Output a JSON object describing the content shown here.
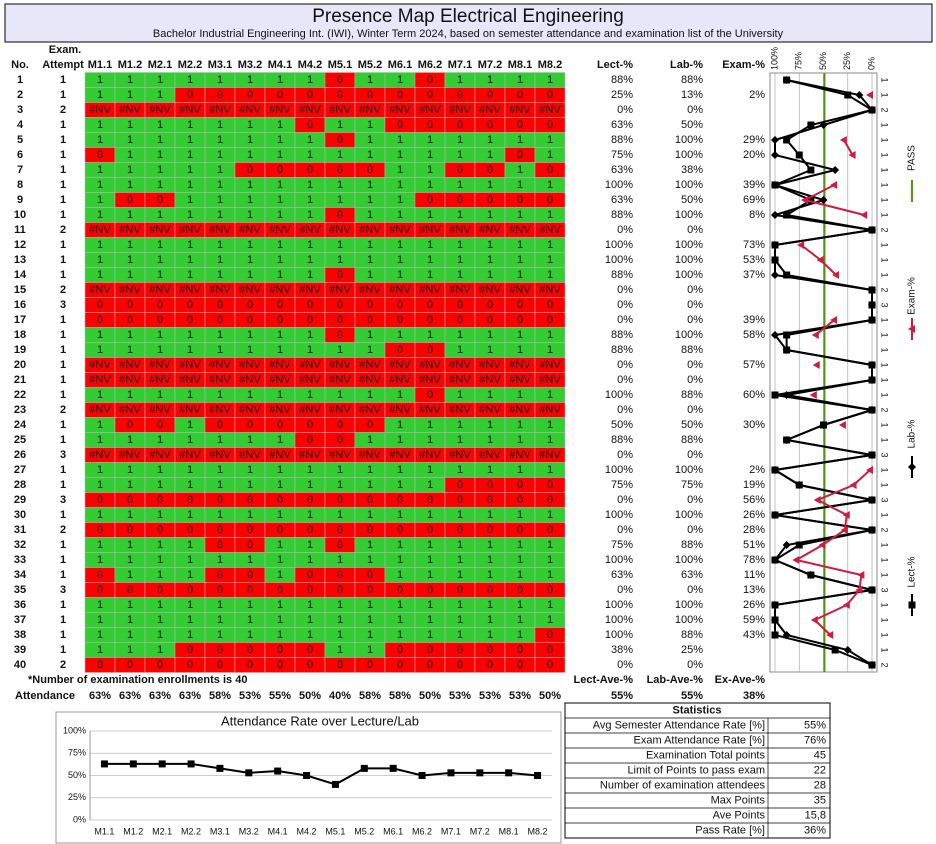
{
  "header": {
    "title": "Presence Map Electrical Engineering",
    "subtitle": "Bachelor Industrial Engineering Int. (IWI), Winter Term 2024, based on semester attendance and examination list of the University"
  },
  "table": {
    "exam_label": "Exam.",
    "columns": [
      "No.",
      "Attempt",
      "M1.1",
      "M1.2",
      "M2.1",
      "M2.2",
      "M3.1",
      "M3.2",
      "M4.1",
      "M4.2",
      "M5.1",
      "M5.2",
      "M6.1",
      "M6.2",
      "M7.1",
      "M7.2",
      "M8.1",
      "M8.2",
      "Lect-%",
      "Lab-%",
      "Exam-%"
    ],
    "rows": [
      [
        1,
        1,
        1,
        1,
        1,
        1,
        1,
        1,
        1,
        1,
        0,
        1,
        1,
        0,
        1,
        1,
        1,
        1,
        "88%",
        "88%",
        null
      ],
      [
        2,
        1,
        1,
        1,
        1,
        0,
        0,
        0,
        0,
        0,
        0,
        0,
        0,
        0,
        0,
        0,
        0,
        0,
        "25%",
        "13%",
        "2%"
      ],
      [
        3,
        2,
        "#NV",
        "#NV",
        "#NV",
        "#NV",
        "#NV",
        "#NV",
        "#NV",
        "#NV",
        "#NV",
        "#NV",
        "#NV",
        "#NV",
        "#NV",
        "#NV",
        "#NV",
        "#NV",
        "0%",
        "0%",
        null
      ],
      [
        4,
        1,
        1,
        1,
        1,
        1,
        1,
        1,
        1,
        0,
        1,
        1,
        0,
        0,
        0,
        0,
        0,
        0,
        "63%",
        "50%",
        null
      ],
      [
        5,
        1,
        1,
        1,
        1,
        1,
        1,
        1,
        1,
        1,
        0,
        1,
        1,
        1,
        1,
        1,
        1,
        1,
        "88%",
        "100%",
        "29%"
      ],
      [
        6,
        1,
        0,
        1,
        1,
        1,
        1,
        1,
        1,
        1,
        1,
        1,
        1,
        1,
        1,
        1,
        0,
        1,
        "75%",
        "100%",
        "20%"
      ],
      [
        7,
        1,
        1,
        1,
        1,
        1,
        1,
        0,
        0,
        0,
        0,
        0,
        1,
        1,
        0,
        0,
        1,
        0,
        "63%",
        "38%",
        null
      ],
      [
        8,
        1,
        1,
        1,
        1,
        1,
        1,
        1,
        1,
        1,
        1,
        1,
        1,
        1,
        1,
        1,
        1,
        1,
        "100%",
        "100%",
        "39%"
      ],
      [
        9,
        1,
        1,
        0,
        0,
        1,
        1,
        1,
        1,
        1,
        1,
        1,
        1,
        0,
        0,
        0,
        0,
        0,
        "63%",
        "50%",
        "69%"
      ],
      [
        10,
        1,
        1,
        1,
        1,
        1,
        1,
        1,
        1,
        1,
        0,
        1,
        1,
        1,
        1,
        1,
        1,
        1,
        "88%",
        "100%",
        "8%"
      ],
      [
        11,
        2,
        "#NV",
        "#NV",
        "#NV",
        "#NV",
        "#NV",
        "#NV",
        "#NV",
        "#NV",
        "#NV",
        "#NV",
        "#NV",
        "#NV",
        "#NV",
        "#NV",
        "#NV",
        "#NV",
        "0%",
        "0%",
        null
      ],
      [
        12,
        1,
        1,
        1,
        1,
        1,
        1,
        1,
        1,
        1,
        1,
        1,
        1,
        1,
        1,
        1,
        1,
        1,
        "100%",
        "100%",
        "73%"
      ],
      [
        13,
        1,
        1,
        1,
        1,
        1,
        1,
        1,
        1,
        1,
        1,
        1,
        1,
        1,
        1,
        1,
        1,
        1,
        "100%",
        "100%",
        "53%"
      ],
      [
        14,
        1,
        1,
        1,
        1,
        1,
        1,
        1,
        1,
        1,
        0,
        1,
        1,
        1,
        1,
        1,
        1,
        1,
        "88%",
        "100%",
        "37%"
      ],
      [
        15,
        2,
        "#NV",
        "#NV",
        "#NV",
        "#NV",
        "#NV",
        "#NV",
        "#NV",
        "#NV",
        "#NV",
        "#NV",
        "#NV",
        "#NV",
        "#NV",
        "#NV",
        "#NV",
        "#NV",
        "0%",
        "0%",
        null
      ],
      [
        16,
        3,
        0,
        0,
        0,
        0,
        0,
        0,
        0,
        0,
        0,
        0,
        0,
        0,
        0,
        0,
        0,
        0,
        "0%",
        "0%",
        null
      ],
      [
        17,
        1,
        0,
        0,
        0,
        0,
        0,
        0,
        0,
        0,
        0,
        0,
        0,
        0,
        0,
        0,
        0,
        0,
        "0%",
        "0%",
        "39%"
      ],
      [
        18,
        1,
        1,
        1,
        1,
        1,
        1,
        1,
        1,
        1,
        0,
        1,
        1,
        1,
        1,
        1,
        1,
        1,
        "88%",
        "100%",
        "58%"
      ],
      [
        19,
        1,
        1,
        1,
        1,
        1,
        1,
        1,
        1,
        1,
        1,
        1,
        0,
        0,
        1,
        1,
        1,
        1,
        "88%",
        "88%",
        null
      ],
      [
        20,
        1,
        "#NV",
        "#NV",
        "#NV",
        "#NV",
        "#NV",
        "#NV",
        "#NV",
        "#NV",
        "#NV",
        "#NV",
        "#NV",
        "#NV",
        "#NV",
        "#NV",
        "#NV",
        "#NV",
        "0%",
        "0%",
        "57%"
      ],
      [
        21,
        1,
        "#NV",
        "#NV",
        "#NV",
        "#NV",
        "#NV",
        "#NV",
        "#NV",
        "#NV",
        "#NV",
        "#NV",
        "#NV",
        "#NV",
        "#NV",
        "#NV",
        "#NV",
        "#NV",
        "0%",
        "0%",
        null
      ],
      [
        22,
        1,
        1,
        1,
        1,
        1,
        1,
        1,
        1,
        1,
        1,
        1,
        1,
        0,
        1,
        1,
        1,
        1,
        "100%",
        "88%",
        "60%"
      ],
      [
        23,
        2,
        "#NV",
        "#NV",
        "#NV",
        "#NV",
        "#NV",
        "#NV",
        "#NV",
        "#NV",
        "#NV",
        "#NV",
        "#NV",
        "#NV",
        "#NV",
        "#NV",
        "#NV",
        "#NV",
        "0%",
        "0%",
        null
      ],
      [
        24,
        1,
        1,
        0,
        0,
        1,
        0,
        0,
        0,
        0,
        0,
        0,
        1,
        1,
        1,
        1,
        1,
        1,
        "50%",
        "50%",
        "30%"
      ],
      [
        25,
        1,
        1,
        1,
        1,
        1,
        1,
        1,
        1,
        0,
        0,
        1,
        1,
        1,
        1,
        1,
        1,
        1,
        "88%",
        "88%",
        null
      ],
      [
        26,
        3,
        "#NV",
        "#NV",
        "#NV",
        "#NV",
        "#NV",
        "#NV",
        "#NV",
        "#NV",
        "#NV",
        "#NV",
        "#NV",
        "#NV",
        "#NV",
        "#NV",
        "#NV",
        "#NV",
        "0%",
        "0%",
        null
      ],
      [
        27,
        1,
        1,
        1,
        1,
        1,
        1,
        1,
        1,
        1,
        1,
        1,
        1,
        1,
        1,
        1,
        1,
        1,
        "100%",
        "100%",
        "2%"
      ],
      [
        28,
        1,
        1,
        1,
        1,
        1,
        1,
        1,
        1,
        1,
        1,
        1,
        1,
        1,
        0,
        0,
        0,
        0,
        "75%",
        "75%",
        "19%"
      ],
      [
        29,
        3,
        0,
        0,
        0,
        0,
        0,
        0,
        0,
        0,
        0,
        0,
        0,
        0,
        0,
        0,
        0,
        0,
        "0%",
        "0%",
        "56%"
      ],
      [
        30,
        1,
        1,
        1,
        1,
        1,
        1,
        1,
        1,
        1,
        1,
        1,
        1,
        1,
        1,
        1,
        1,
        1,
        "100%",
        "100%",
        "26%"
      ],
      [
        31,
        2,
        0,
        0,
        0,
        0,
        0,
        0,
        0,
        0,
        0,
        0,
        0,
        0,
        0,
        0,
        0,
        0,
        "0%",
        "0%",
        "28%"
      ],
      [
        32,
        1,
        1,
        1,
        1,
        1,
        0,
        0,
        1,
        1,
        0,
        1,
        1,
        1,
        1,
        1,
        1,
        1,
        "75%",
        "88%",
        "51%"
      ],
      [
        33,
        1,
        1,
        1,
        1,
        1,
        1,
        1,
        1,
        1,
        1,
        1,
        1,
        1,
        1,
        1,
        1,
        1,
        "100%",
        "100%",
        "78%"
      ],
      [
        34,
        1,
        0,
        1,
        1,
        1,
        0,
        0,
        1,
        0,
        0,
        0,
        1,
        1,
        1,
        1,
        1,
        1,
        "63%",
        "63%",
        "11%"
      ],
      [
        35,
        3,
        0,
        0,
        0,
        0,
        0,
        0,
        0,
        0,
        0,
        0,
        0,
        0,
        0,
        0,
        0,
        0,
        "0%",
        "0%",
        "13%"
      ],
      [
        36,
        1,
        1,
        1,
        1,
        1,
        1,
        1,
        1,
        1,
        1,
        1,
        1,
        1,
        1,
        1,
        1,
        1,
        "100%",
        "100%",
        "26%"
      ],
      [
        37,
        1,
        1,
        1,
        1,
        1,
        1,
        1,
        1,
        1,
        1,
        1,
        1,
        1,
        1,
        1,
        1,
        1,
        "100%",
        "100%",
        "59%"
      ],
      [
        38,
        1,
        1,
        1,
        1,
        1,
        1,
        1,
        1,
        1,
        1,
        1,
        1,
        1,
        1,
        1,
        1,
        0,
        "100%",
        "88%",
        "43%"
      ],
      [
        39,
        1,
        1,
        1,
        1,
        0,
        0,
        0,
        0,
        0,
        1,
        1,
        0,
        0,
        0,
        0,
        0,
        0,
        "38%",
        "25%",
        null
      ],
      [
        40,
        2,
        0,
        0,
        0,
        0,
        0,
        0,
        0,
        0,
        0,
        0,
        0,
        0,
        0,
        0,
        0,
        0,
        "0%",
        "0%",
        null
      ]
    ],
    "footnote": "*Number of examination enrollments is 40",
    "attendance_label": "Attendance",
    "attendance": [
      "63%",
      "63%",
      "63%",
      "63%",
      "58%",
      "53%",
      "55%",
      "50%",
      "40%",
      "58%",
      "58%",
      "50%",
      "53%",
      "53%",
      "53%",
      "50%"
    ],
    "average_labels": [
      "Lect-Ave-%",
      "Lab-Ave-%",
      "Ex-Ave-%"
    ],
    "averages": [
      "55%",
      "55%",
      "38%"
    ]
  },
  "stats": {
    "title": "Statistics",
    "rows": [
      [
        "Avg Semester Attendance Rate [%]",
        "55%"
      ],
      [
        "Exam Attendance Rate [%]",
        "76%"
      ],
      [
        "Examination Total points",
        "45"
      ],
      [
        "Limit of Points to pass exam",
        "22"
      ],
      [
        "Number of examination attendees",
        "28"
      ],
      [
        "Max Points",
        "35"
      ],
      [
        "Ave Points",
        "15,8"
      ],
      [
        "Pass Rate [%]",
        "36%"
      ]
    ]
  },
  "chart_data": [
    {
      "type": "line",
      "orientation": "horizontal",
      "categories": [
        1,
        1,
        2,
        1,
        1,
        1,
        1,
        1,
        1,
        1,
        2,
        1,
        1,
        1,
        2,
        3,
        1,
        1,
        1,
        1,
        1,
        1,
        2,
        1,
        1,
        3,
        1,
        1,
        3,
        1,
        2,
        1,
        1,
        1,
        3,
        1,
        1,
        1,
        1,
        2
      ],
      "xlim": [
        100,
        0
      ],
      "xticks": [
        {
          "value": 100,
          "label": "100%"
        },
        {
          "value": 75,
          "label": "75%"
        },
        {
          "value": 50,
          "label": "50%"
        },
        {
          "value": 25,
          "label": "25%"
        },
        {
          "value": 0,
          "label": "0%"
        }
      ],
      "grid": true,
      "series": [
        {
          "name": "Lect-%",
          "color": "#000000",
          "marker": "square",
          "values": [
            88,
            25,
            0,
            63,
            88,
            75,
            63,
            100,
            63,
            88,
            0,
            100,
            100,
            88,
            0,
            0,
            0,
            88,
            88,
            0,
            0,
            100,
            0,
            50,
            88,
            0,
            100,
            75,
            0,
            100,
            0,
            75,
            100,
            63,
            0,
            100,
            100,
            100,
            38,
            0
          ]
        },
        {
          "name": "Lab-%",
          "color": "#000000",
          "marker": "diamond",
          "values": [
            88,
            13,
            0,
            50,
            100,
            100,
            38,
            100,
            50,
            100,
            0,
            100,
            100,
            100,
            0,
            0,
            0,
            100,
            88,
            0,
            0,
            88,
            0,
            50,
            88,
            0,
            100,
            75,
            0,
            100,
            0,
            88,
            100,
            63,
            0,
            100,
            100,
            88,
            25,
            0
          ]
        },
        {
          "name": "Exam-%",
          "color": "#d11a3f",
          "marker": "triangle",
          "values": [
            null,
            2,
            null,
            null,
            29,
            20,
            null,
            39,
            69,
            8,
            null,
            73,
            53,
            37,
            null,
            null,
            39,
            58,
            null,
            57,
            null,
            60,
            null,
            30,
            null,
            null,
            2,
            19,
            56,
            26,
            28,
            51,
            78,
            11,
            13,
            26,
            59,
            43,
            null,
            null
          ]
        }
      ],
      "pass_line": {
        "name": "PASS",
        "value": 49,
        "color": "#4e9a06"
      }
    },
    {
      "type": "line",
      "title": "Attendance Rate over Lecture/Lab",
      "color": "#000000",
      "marker": "square",
      "categories": [
        "M1.1",
        "M1.2",
        "M2.1",
        "M2.2",
        "M3.1",
        "M3.2",
        "M4.1",
        "M4.2",
        "M5.1",
        "M5.2",
        "M6.1",
        "M6.2",
        "M7.1",
        "M7.2",
        "M8.1",
        "M8.2"
      ],
      "values": [
        63,
        63,
        63,
        63,
        58,
        53,
        55,
        50,
        40,
        58,
        58,
        50,
        53,
        53,
        53,
        50
      ],
      "ylim": [
        0,
        100
      ],
      "yticks": [
        {
          "value": 0,
          "label": "0%"
        },
        {
          "value": 25,
          "label": "25%"
        },
        {
          "value": 50,
          "label": "50%"
        },
        {
          "value": 75,
          "label": "75%"
        },
        {
          "value": 100,
          "label": "100%"
        }
      ],
      "grid": true
    }
  ]
}
